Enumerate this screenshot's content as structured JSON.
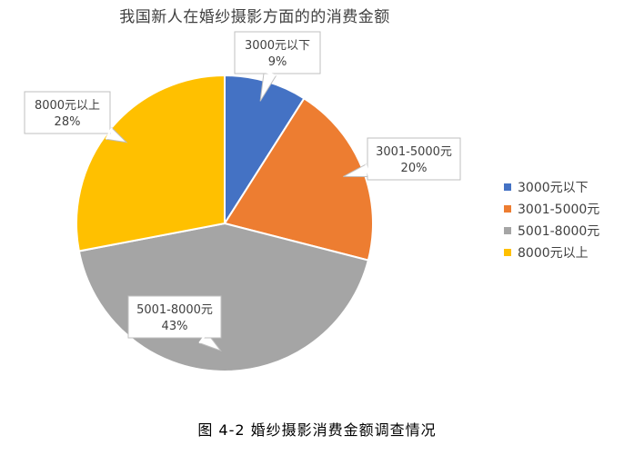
{
  "chart_data": {
    "type": "pie",
    "title": "我国新人在婚纱摄影方面的的消费金额",
    "categories": [
      "3000元以下",
      "3001-5000元",
      "5001-8000元",
      "8000元以上"
    ],
    "values": [
      9,
      20,
      43,
      28
    ],
    "value_labels": [
      "9%",
      "20%",
      "43%",
      "28%"
    ],
    "colors": [
      "#4472C4",
      "#ED7D31",
      "#A5A5A5",
      "#FFC000"
    ],
    "legend_position": "right"
  },
  "caption": "图 4-2 婚纱摄影消费金额调查情况"
}
